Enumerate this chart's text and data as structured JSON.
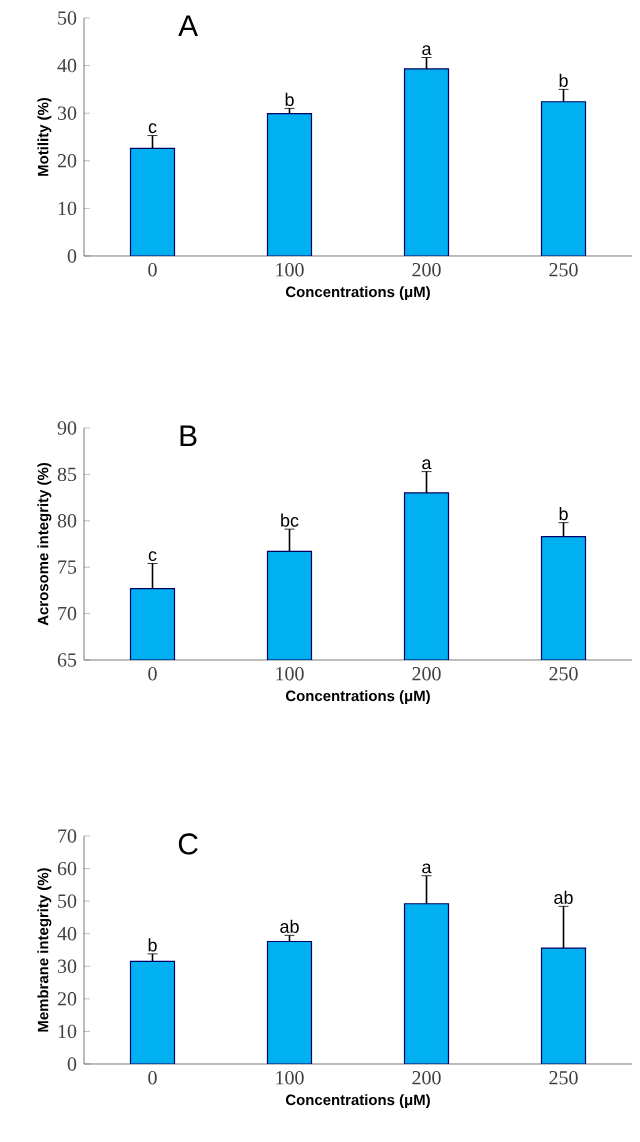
{
  "chart_data": [
    {
      "type": "bar",
      "title": "A",
      "categories": [
        "0",
        "100",
        "200",
        "250"
      ],
      "xlabel": "Concentrations (μM)",
      "ylabel": "Motility (%)",
      "values": [
        22.6,
        29.9,
        39.3,
        32.4
      ],
      "errors": [
        2.7,
        1.1,
        2.4,
        2.6
      ],
      "color": "#00b0f0",
      "ylim": [
        0,
        50
      ],
      "yticks": [
        0,
        10,
        20,
        30,
        40,
        50
      ],
      "annotations": [
        {
          "text": "c",
          "x": "0",
          "y": 25.3
        },
        {
          "text": "b",
          "x": "100",
          "y": 31.0
        },
        {
          "text": "a",
          "x": "200",
          "y": 41.7
        },
        {
          "text": "b",
          "x": "250",
          "y": 35.0
        }
      ]
    },
    {
      "type": "bar",
      "title": "B",
      "categories": [
        "0",
        "100",
        "200",
        "250"
      ],
      "xlabel": "Concentrations (μM)",
      "ylabel": "Acrosome integrity (%)",
      "values": [
        72.7,
        76.7,
        83.0,
        78.3
      ],
      "errors": [
        2.7,
        2.4,
        2.3,
        1.5
      ],
      "color": "#00b0f0",
      "ylim": [
        65,
        90
      ],
      "yticks": [
        65,
        70,
        75,
        80,
        85,
        90
      ],
      "annotations": [
        {
          "text": "c",
          "x": "0",
          "y": 75.4
        },
        {
          "text": "bc",
          "x": "100",
          "y": 79.1
        },
        {
          "text": "a",
          "x": "200",
          "y": 85.3
        },
        {
          "text": "b",
          "x": "250",
          "y": 79.8
        }
      ]
    },
    {
      "type": "bar",
      "title": "C",
      "categories": [
        "0",
        "100",
        "200",
        "250"
      ],
      "xlabel": "Concentrations (μM)",
      "ylabel": "Membrane integrity (%)",
      "values": [
        31.5,
        37.6,
        49.2,
        35.6
      ],
      "errors": [
        2.3,
        1.9,
        8.6,
        12.8
      ],
      "color": "#00b0f0",
      "ylim": [
        0,
        70
      ],
      "yticks": [
        0,
        10,
        20,
        30,
        40,
        50,
        60,
        70
      ],
      "annotations": [
        {
          "text": "b",
          "x": "0",
          "y": 33.8
        },
        {
          "text": "ab",
          "x": "100",
          "y": 39.5
        },
        {
          "text": "a",
          "x": "200",
          "y": 57.8
        },
        {
          "text": "ab",
          "x": "250",
          "y": 48.4
        }
      ]
    }
  ]
}
